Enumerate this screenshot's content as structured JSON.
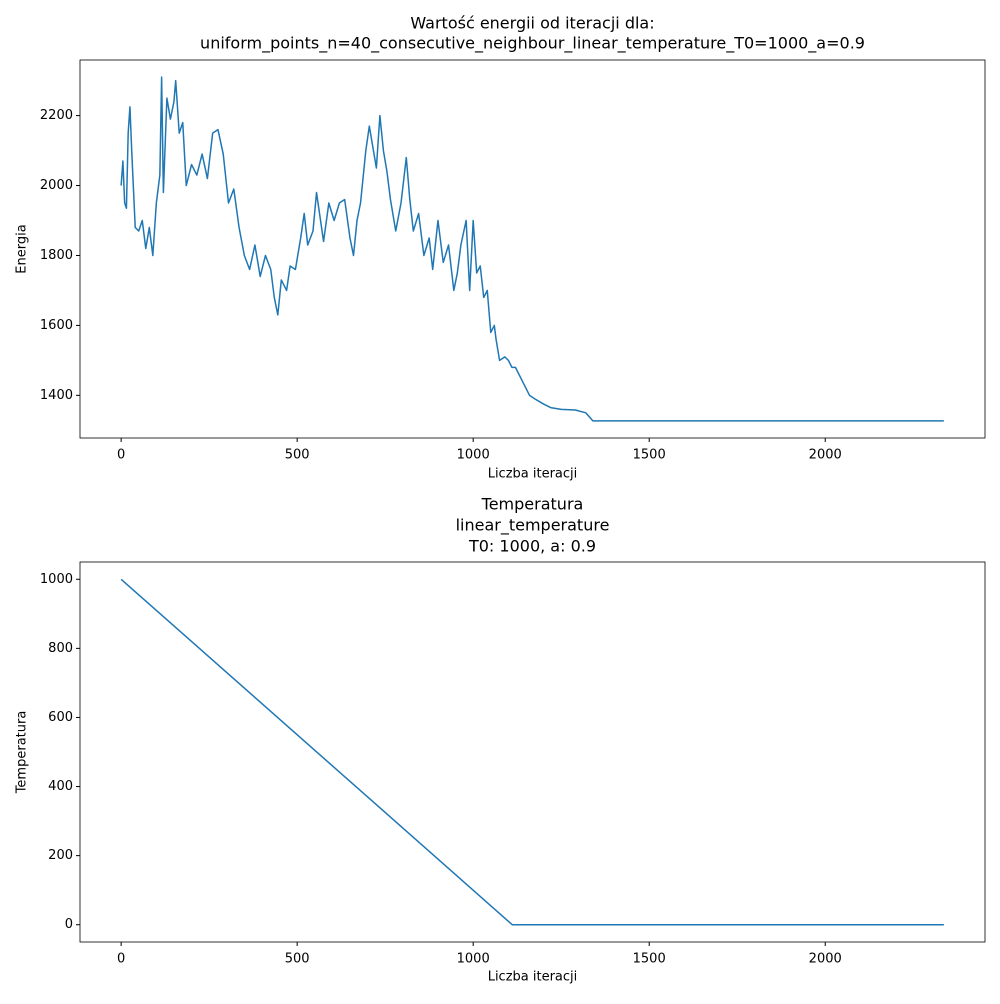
{
  "chart_data": [
    {
      "type": "line",
      "title": [
        "Wartość energii od iteracji dla:",
        "uniform_points_n=40_consecutive_neighbour_linear_temperature_T0=1000_a=0.9"
      ],
      "xlabel": "Liczba iteracji",
      "ylabel": "Energia",
      "xlim": [
        -116.85,
        2453.85
      ],
      "ylim": [
        1278,
        2359
      ],
      "xticks": [
        0,
        500,
        1000,
        1500,
        2000
      ],
      "yticks": [
        1400,
        1600,
        1800,
        2000,
        2200
      ],
      "grid": false,
      "series": [
        {
          "name": "Energia",
          "color": "#1f77b4",
          "x": [
            0,
            5,
            10,
            15,
            20,
            25,
            30,
            40,
            50,
            60,
            70,
            80,
            90,
            100,
            110,
            115,
            120,
            130,
            140,
            150,
            155,
            165,
            175,
            185,
            200,
            215,
            230,
            245,
            260,
            275,
            290,
            305,
            320,
            335,
            350,
            365,
            380,
            395,
            410,
            425,
            435,
            445,
            455,
            470,
            480,
            495,
            510,
            520,
            530,
            545,
            555,
            565,
            575,
            590,
            605,
            620,
            635,
            650,
            660,
            670,
            680,
            695,
            705,
            715,
            725,
            735,
            745,
            755,
            765,
            780,
            795,
            810,
            820,
            830,
            845,
            860,
            875,
            885,
            900,
            915,
            930,
            945,
            955,
            965,
            980,
            990,
            1000,
            1010,
            1020,
            1030,
            1040,
            1050,
            1060,
            1065,
            1075,
            1090,
            1100,
            1110,
            1120,
            1140,
            1160,
            1175,
            1200,
            1220,
            1250,
            1290,
            1320,
            1340,
            2337
          ],
          "values": [
            2000,
            2070,
            1950,
            1935,
            2150,
            2225,
            2100,
            1880,
            1870,
            1900,
            1820,
            1880,
            1800,
            1950,
            2030,
            2310,
            1980,
            2250,
            2190,
            2240,
            2300,
            2150,
            2180,
            2000,
            2060,
            2030,
            2090,
            2020,
            2150,
            2160,
            2090,
            1950,
            1990,
            1880,
            1800,
            1760,
            1830,
            1740,
            1800,
            1760,
            1680,
            1630,
            1730,
            1700,
            1770,
            1760,
            1850,
            1920,
            1830,
            1870,
            1980,
            1910,
            1840,
            1950,
            1900,
            1950,
            1960,
            1850,
            1800,
            1900,
            1950,
            2100,
            2170,
            2110,
            2050,
            2200,
            2100,
            2040,
            1960,
            1870,
            1950,
            2080,
            1960,
            1870,
            1920,
            1800,
            1850,
            1760,
            1900,
            1780,
            1830,
            1700,
            1750,
            1830,
            1900,
            1700,
            1900,
            1750,
            1770,
            1680,
            1700,
            1580,
            1600,
            1560,
            1500,
            1510,
            1500,
            1480,
            1480,
            1440,
            1400,
            1390,
            1375,
            1365,
            1360,
            1358,
            1350,
            1327,
            1327
          ]
        }
      ]
    },
    {
      "type": "line",
      "title": [
        "Temperatura",
        "linear_temperature",
        "T0: 1000, a: 0.9"
      ],
      "xlabel": "Liczba iteracji",
      "ylabel": "Temperatura",
      "xlim": [
        -116.85,
        2453.85
      ],
      "ylim": [
        -50,
        1050
      ],
      "xticks": [
        0,
        500,
        1000,
        1500,
        2000
      ],
      "yticks": [
        0,
        200,
        400,
        600,
        800,
        1000
      ],
      "grid": false,
      "series": [
        {
          "name": "Temperatura",
          "color": "#1f77b4",
          "x": [
            0,
            1111,
            2337
          ],
          "values": [
            1000,
            0,
            0
          ]
        }
      ]
    }
  ]
}
